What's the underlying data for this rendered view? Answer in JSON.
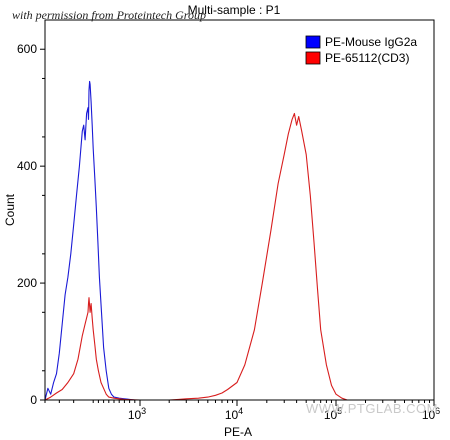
{
  "credit": "with permission from Proteintech Group",
  "watermark": "WWW.PTGLAB.COM",
  "chart_data": {
    "type": "line",
    "title": "Multi-sample : P1",
    "xlabel": "PE-A",
    "ylabel": "Count",
    "x_scale": "biexponential",
    "xlim": [
      -300,
      1000000
    ],
    "ylim": [
      0,
      650
    ],
    "y_ticks": [
      0,
      200,
      400,
      600
    ],
    "x_ticks": [
      {
        "value": 1000,
        "base": "10",
        "exp": "3"
      },
      {
        "value": 10000,
        "base": "10",
        "exp": "4"
      },
      {
        "value": 100000,
        "base": "10",
        "exp": "5"
      },
      {
        "value": 1000000,
        "base": "10",
        "exp": "6"
      }
    ],
    "grid": false,
    "legend_position": "top-right",
    "series": [
      {
        "name": "PE-Mouse IgG2a",
        "color": "#1a1ad6",
        "legend_color": "#0000ff",
        "points": [
          [
            -300,
            0
          ],
          [
            -280,
            20
          ],
          [
            -260,
            10
          ],
          [
            -240,
            30
          ],
          [
            -220,
            45
          ],
          [
            -200,
            80
          ],
          [
            -180,
            130
          ],
          [
            -160,
            180
          ],
          [
            -140,
            210
          ],
          [
            -120,
            250
          ],
          [
            -100,
            300
          ],
          [
            -80,
            350
          ],
          [
            -60,
            400
          ],
          [
            -40,
            460
          ],
          [
            -30,
            470
          ],
          [
            -20,
            445
          ],
          [
            -10,
            490
          ],
          [
            0,
            500
          ],
          [
            10,
            480
          ],
          [
            20,
            530
          ],
          [
            30,
            545
          ],
          [
            40,
            540
          ],
          [
            60,
            510
          ],
          [
            80,
            470
          ],
          [
            100,
            430
          ],
          [
            130,
            380
          ],
          [
            160,
            330
          ],
          [
            190,
            270
          ],
          [
            220,
            210
          ],
          [
            260,
            150
          ],
          [
            300,
            90
          ],
          [
            350,
            50
          ],
          [
            400,
            20
          ],
          [
            450,
            10
          ],
          [
            500,
            5
          ],
          [
            600,
            3
          ],
          [
            700,
            2
          ],
          [
            800,
            1
          ],
          [
            900,
            0
          ]
        ]
      },
      {
        "name": "PE-65112(CD3)",
        "color": "#d81e1e",
        "legend_color": "#ff0000",
        "points": [
          [
            -300,
            0
          ],
          [
            -260,
            5
          ],
          [
            -220,
            12
          ],
          [
            -180,
            18
          ],
          [
            -140,
            30
          ],
          [
            -100,
            45
          ],
          [
            -70,
            70
          ],
          [
            -40,
            110
          ],
          [
            -20,
            130
          ],
          [
            0,
            150
          ],
          [
            10,
            165
          ],
          [
            20,
            175
          ],
          [
            40,
            150
          ],
          [
            60,
            165
          ],
          [
            80,
            140
          ],
          [
            100,
            120
          ],
          [
            130,
            95
          ],
          [
            160,
            70
          ],
          [
            200,
            50
          ],
          [
            250,
            30
          ],
          [
            300,
            20
          ],
          [
            350,
            10
          ],
          [
            400,
            5
          ],
          [
            500,
            3
          ],
          [
            700,
            1
          ],
          [
            1000,
            0
          ],
          [
            1500,
            0
          ],
          [
            2000,
            0
          ],
          [
            2500,
            1
          ],
          [
            3000,
            2
          ],
          [
            4000,
            3
          ],
          [
            5000,
            5
          ],
          [
            6000,
            8
          ],
          [
            7000,
            12
          ],
          [
            8000,
            18
          ],
          [
            10000,
            30
          ],
          [
            12000,
            60
          ],
          [
            15000,
            120
          ],
          [
            18000,
            200
          ],
          [
            22000,
            290
          ],
          [
            26000,
            370
          ],
          [
            30000,
            420
          ],
          [
            33000,
            455
          ],
          [
            36000,
            480
          ],
          [
            38000,
            490
          ],
          [
            40000,
            470
          ],
          [
            42000,
            485
          ],
          [
            45000,
            460
          ],
          [
            50000,
            420
          ],
          [
            55000,
            350
          ],
          [
            60000,
            270
          ],
          [
            65000,
            190
          ],
          [
            70000,
            120
          ],
          [
            80000,
            60
          ],
          [
            90000,
            25
          ],
          [
            100000,
            10
          ],
          [
            115000,
            3
          ],
          [
            130000,
            0
          ]
        ]
      }
    ]
  }
}
